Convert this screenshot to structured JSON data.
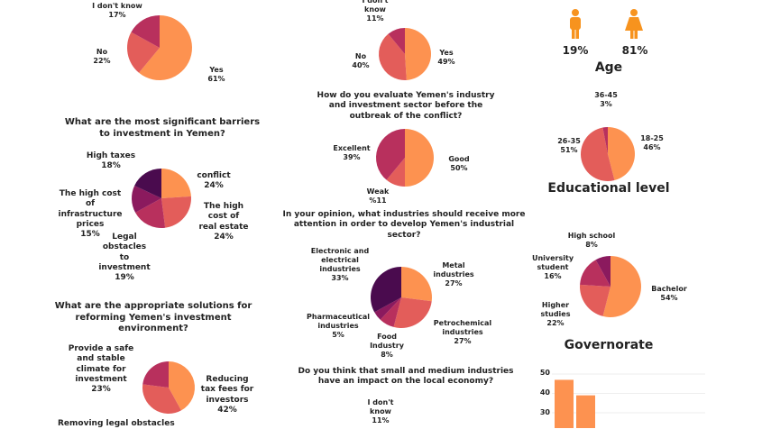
{
  "colors": {
    "orange": "#fd9250",
    "coral": "#e35d5a",
    "magenta": "#b8305d",
    "plum": "#8b1a5e",
    "darkplum": "#4a0b4e",
    "icon": "#f7931e"
  },
  "chart_data": [
    {
      "type": "pie",
      "title": "",
      "slices": [
        {
          "label": "Yes",
          "value": 61,
          "text": "61%"
        },
        {
          "label": "No",
          "value": 22,
          "text": "22%"
        },
        {
          "label": "I don't know",
          "value": 17,
          "text": "17%"
        }
      ]
    },
    {
      "type": "pie",
      "title": "What are the most significant barriers to investment in Yemen?",
      "slices": [
        {
          "label": "conflict",
          "value": 24,
          "text": "24%"
        },
        {
          "label": "The high cost of real estate",
          "value": 24,
          "text": "24%"
        },
        {
          "label": "Legal obstacles to investment",
          "value": 19,
          "text": "19%"
        },
        {
          "label": "The high cost of infrastructure prices",
          "value": 15,
          "text": "15%"
        },
        {
          "label": "High taxes",
          "value": 18,
          "text": "18%"
        }
      ]
    },
    {
      "type": "pie",
      "title": "What are the appropriate solutions for reforming Yemen's investment environment?",
      "slices": [
        {
          "label": "Reducing tax fees for investors",
          "value": 42,
          "text": "42%"
        },
        {
          "label": "Removing legal obstacles",
          "value": 35,
          "text": ""
        },
        {
          "label": "Provide a safe and stable climate for investment",
          "value": 23,
          "text": "23%"
        }
      ]
    },
    {
      "type": "pie",
      "title": "",
      "slices": [
        {
          "label": "Yes",
          "value": 49,
          "text": "49%"
        },
        {
          "label": "No",
          "value": 40,
          "text": "40%"
        },
        {
          "label": "I don't know",
          "value": 11,
          "text": "11%"
        }
      ]
    },
    {
      "type": "pie",
      "title": "How do you evaluate Yemen's industry and investment sector before the outbreak of the conflict?",
      "slices": [
        {
          "label": "Good",
          "value": 50,
          "text": "50%"
        },
        {
          "label": "Weak",
          "value": 11,
          "text": "%11"
        },
        {
          "label": "Excellent",
          "value": 39,
          "text": "39%"
        }
      ]
    },
    {
      "type": "pie",
      "title": "In your opinion, what industries should receive more attention in order to develop Yemen's industrial sector?",
      "slices": [
        {
          "label": "Metal industries",
          "value": 27,
          "text": "27%"
        },
        {
          "label": "Petrochemical industries",
          "value": 27,
          "text": "27%"
        },
        {
          "label": "Food Industry",
          "value": 8,
          "text": "8%"
        },
        {
          "label": "Pharmaceutical industries",
          "value": 5,
          "text": "5%"
        },
        {
          "label": "Electronic and electrical industries",
          "value": 33,
          "text": "33%"
        }
      ]
    },
    {
      "type": "pie",
      "title": "Age",
      "slices": [
        {
          "label": "18-25",
          "value": 46,
          "text": "46%"
        },
        {
          "label": "26-35",
          "value": 51,
          "text": "51%"
        },
        {
          "label": "36-45",
          "value": 3,
          "text": "3%"
        }
      ]
    },
    {
      "type": "pie",
      "title": "Educational level",
      "slices": [
        {
          "label": "Bachelor",
          "value": 54,
          "text": "54%"
        },
        {
          "label": "Higher studies",
          "value": 22,
          "text": "22%"
        },
        {
          "label": "University student",
          "value": 16,
          "text": "16%"
        },
        {
          "label": "High school",
          "value": 8,
          "text": "8%"
        }
      ]
    },
    {
      "type": "bar",
      "title": "Governorate",
      "yticks": [
        "50",
        "40",
        "30"
      ],
      "values": [
        47,
        39
      ],
      "grid": true
    }
  ],
  "last_question": {
    "title": "Do you think that small and medium industries have an impact on the local economy?",
    "label": "I don't know",
    "text": "11%"
  },
  "gender": {
    "male": "19%",
    "female": "81%"
  }
}
